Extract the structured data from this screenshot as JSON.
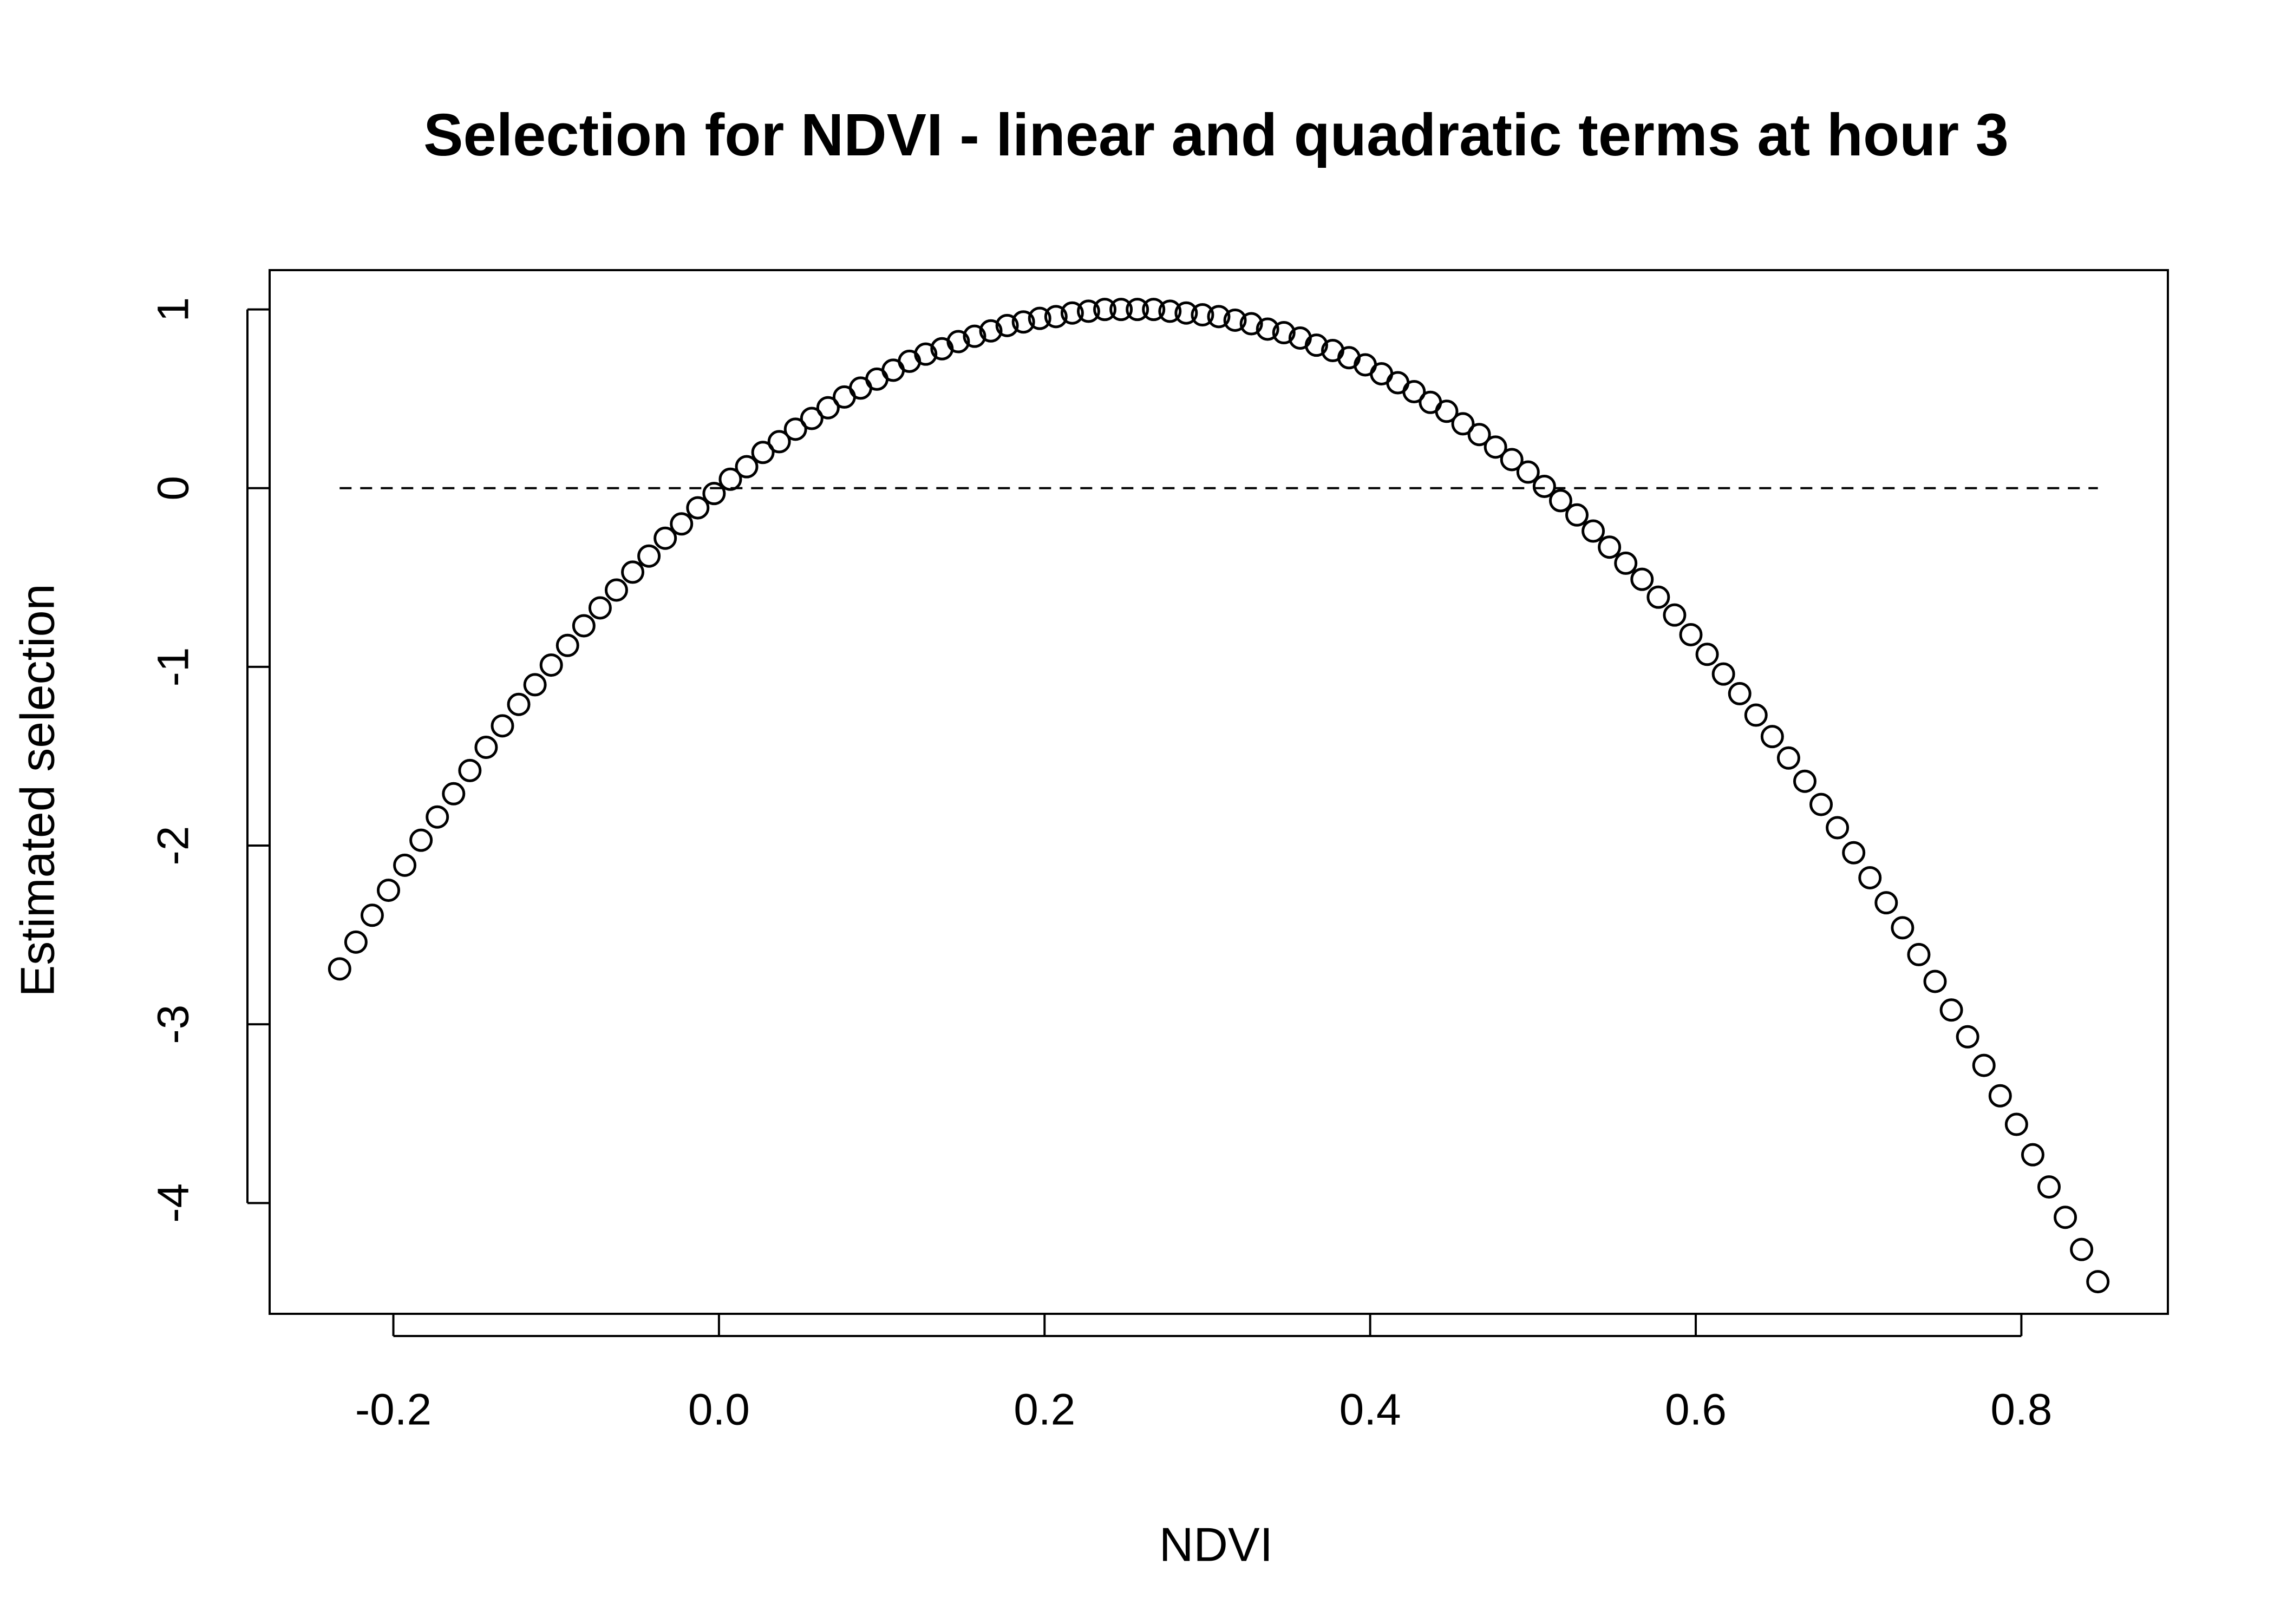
{
  "chart_data": {
    "type": "scatter",
    "title": "Selection for NDVI - linear and quadratic terms at hour 3",
    "x_label": "NDVI",
    "y_label": "Estimated selection",
    "x": [
      -0.233,
      -0.223,
      -0.213,
      -0.203,
      -0.193,
      -0.183,
      -0.173,
      -0.163,
      -0.153,
      -0.143,
      -0.133,
      -0.123,
      -0.113,
      -0.103,
      -0.093,
      -0.083,
      -0.073,
      -0.063,
      -0.053,
      -0.043,
      -0.033,
      -0.023,
      -0.013,
      -0.003,
      0.007,
      0.017,
      0.027,
      0.037,
      0.047,
      0.057,
      0.067,
      0.077,
      0.087,
      0.097,
      0.107,
      0.117,
      0.127,
      0.137,
      0.147,
      0.157,
      0.167,
      0.177,
      0.187,
      0.197,
      0.207,
      0.217,
      0.227,
      0.237,
      0.247,
      0.257,
      0.267,
      0.277,
      0.287,
      0.297,
      0.307,
      0.317,
      0.327,
      0.337,
      0.347,
      0.357,
      0.367,
      0.377,
      0.387,
      0.397,
      0.407,
      0.417,
      0.427,
      0.437,
      0.447,
      0.457,
      0.467,
      0.477,
      0.487,
      0.497,
      0.507,
      0.517,
      0.527,
      0.537,
      0.547,
      0.557,
      0.567,
      0.577,
      0.587,
      0.597,
      0.607,
      0.617,
      0.627,
      0.637,
      0.647,
      0.657,
      0.667,
      0.677,
      0.687,
      0.697,
      0.707,
      0.717,
      0.727,
      0.737,
      0.747,
      0.757,
      0.767,
      0.777,
      0.787,
      0.797,
      0.807,
      0.817,
      0.827,
      0.837,
      0.847
    ],
    "values": [
      -2.69,
      -2.54,
      -2.39,
      -2.25,
      -2.11,
      -1.97,
      -1.84,
      -1.71,
      -1.58,
      -1.45,
      -1.33,
      -1.21,
      -1.1,
      -0.99,
      -0.88,
      -0.77,
      -0.67,
      -0.57,
      -0.47,
      -0.38,
      -0.28,
      -0.2,
      -0.11,
      -0.03,
      0.05,
      0.12,
      0.2,
      0.26,
      0.33,
      0.39,
      0.45,
      0.51,
      0.56,
      0.61,
      0.66,
      0.71,
      0.75,
      0.78,
      0.82,
      0.85,
      0.88,
      0.91,
      0.93,
      0.95,
      0.96,
      0.98,
      0.99,
      1.0,
      1.0,
      1.0,
      1.0,
      0.99,
      0.98,
      0.97,
      0.96,
      0.94,
      0.92,
      0.89,
      0.87,
      0.84,
      0.8,
      0.77,
      0.73,
      0.69,
      0.64,
      0.59,
      0.54,
      0.48,
      0.43,
      0.36,
      0.3,
      0.23,
      0.16,
      0.09,
      0.01,
      -0.07,
      -0.15,
      -0.24,
      -0.33,
      -0.42,
      -0.51,
      -0.61,
      -0.71,
      -0.82,
      -0.93,
      -1.04,
      -1.15,
      -1.27,
      -1.39,
      -1.51,
      -1.64,
      -1.77,
      -1.9,
      -2.04,
      -2.18,
      -2.32,
      -2.46,
      -2.61,
      -2.76,
      -2.92,
      -3.07,
      -3.23,
      -3.4,
      -3.56,
      -3.73,
      -3.91,
      -4.08,
      -4.26,
      -4.44
    ],
    "color": "#000000",
    "reference_line_y": 0,
    "xlim": [
      -0.276,
      0.89
    ],
    "ylim": [
      -4.62,
      1.22
    ],
    "xticks": [
      -0.2,
      {
        "value": 0,
        "label": "0.0"
      },
      0.2,
      0.4,
      0.6,
      0.8
    ],
    "yticks": [
      -4,
      -3,
      -2,
      -1,
      0,
      1
    ]
  }
}
